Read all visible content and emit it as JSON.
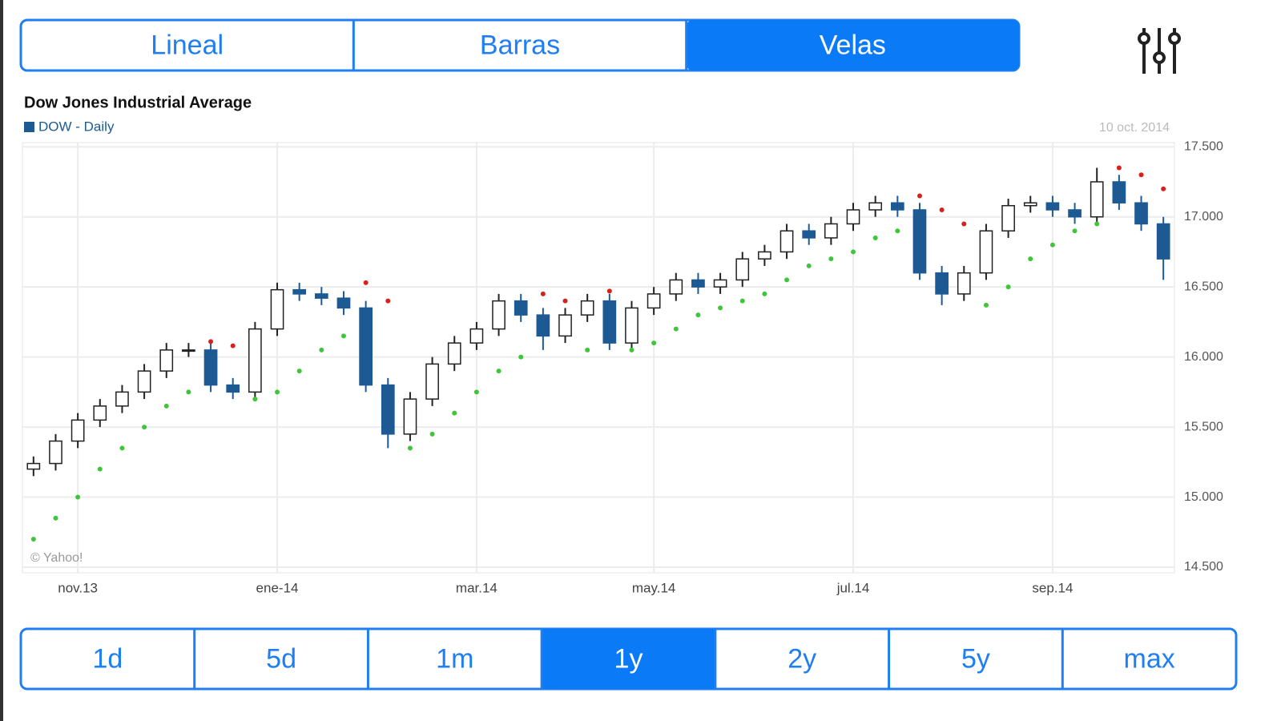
{
  "tabs": {
    "items": [
      "Lineal",
      "Barras",
      "Velas"
    ],
    "active": 2
  },
  "chart_data": {
    "type": "candlestick",
    "title": "Dow Jones Industrial Average",
    "legend": "DOW - Daily",
    "date": "10 oct. 2014",
    "credit": "© Yahoo!",
    "categories": [
      null,
      null,
      "nov.13",
      null,
      null,
      null,
      null,
      null,
      null,
      null,
      null,
      "ene-14",
      null,
      null,
      null,
      null,
      null,
      null,
      null,
      null,
      "mar.14",
      null,
      null,
      null,
      null,
      null,
      null,
      null,
      "may.14",
      null,
      null,
      null,
      null,
      null,
      null,
      null,
      null,
      "jul.14",
      null,
      null,
      null,
      null,
      null,
      null,
      null,
      null,
      "sep.14",
      null,
      null,
      null,
      null,
      null
    ],
    "open": [
      15200,
      15240,
      15400,
      15550,
      15650,
      15750,
      15900,
      16050,
      16050,
      15800,
      15750,
      16200,
      16480,
      16450,
      16420,
      16350,
      15800,
      15450,
      15700,
      15950,
      16100,
      16200,
      16400,
      16300,
      16150,
      16300,
      16400,
      16100,
      16350,
      16450,
      16550,
      16500,
      16550,
      16700,
      16750,
      16900,
      16850,
      16950,
      17050,
      17100,
      17050,
      16600,
      16450,
      16600,
      16900,
      17080,
      17100,
      17050,
      17000,
      17250,
      17100,
      16950
    ],
    "high": [
      15290,
      15450,
      15600,
      15700,
      15800,
      15950,
      16100,
      16100,
      16100,
      15850,
      16250,
      16530,
      16530,
      16500,
      16470,
      16400,
      15850,
      15750,
      16000,
      16150,
      16250,
      16450,
      16450,
      16350,
      16350,
      16450,
      16450,
      16400,
      16500,
      16600,
      16600,
      16600,
      16750,
      16800,
      16950,
      16950,
      17000,
      17100,
      17150,
      17150,
      17100,
      16650,
      16650,
      16950,
      17130,
      17150,
      17150,
      17100,
      17350,
      17300,
      17150,
      17000
    ],
    "low": [
      15150,
      15190,
      15350,
      15500,
      15600,
      15700,
      15850,
      16000,
      15750,
      15700,
      15700,
      16150,
      16400,
      16370,
      16300,
      15750,
      15350,
      15400,
      15650,
      15900,
      16050,
      16150,
      16250,
      16050,
      16100,
      16250,
      16050,
      16050,
      16300,
      16400,
      16450,
      16450,
      16500,
      16650,
      16700,
      16800,
      16800,
      16900,
      17000,
      17000,
      16550,
      16370,
      16400,
      16550,
      16850,
      17030,
      17000,
      16950,
      16950,
      17050,
      16900,
      16550
    ],
    "close": [
      15240,
      15400,
      15550,
      15650,
      15750,
      15900,
      16050,
      16050,
      15800,
      15750,
      16200,
      16480,
      16450,
      16420,
      16350,
      15800,
      15450,
      15700,
      15950,
      16100,
      16200,
      16400,
      16300,
      16150,
      16300,
      16400,
      16100,
      16350,
      16450,
      16550,
      16500,
      16550,
      16700,
      16750,
      16900,
      16850,
      16950,
      17050,
      17100,
      17050,
      16600,
      16450,
      16600,
      16900,
      17080,
      17100,
      17050,
      17000,
      17250,
      17100,
      16950,
      16700
    ],
    "sar": [
      14700,
      14850,
      15000,
      15200,
      15350,
      15500,
      15650,
      15750,
      16110,
      16080,
      15700,
      15750,
      15900,
      16050,
      16150,
      16530,
      16400,
      15350,
      15450,
      15600,
      15750,
      15900,
      16000,
      16450,
      16400,
      16050,
      16470,
      16050,
      16100,
      16200,
      16300,
      16350,
      16400,
      16450,
      16550,
      16650,
      16700,
      16750,
      16850,
      16900,
      17150,
      17050,
      16950,
      16370,
      16500,
      16700,
      16800,
      16900,
      16950,
      17350,
      17300,
      17200
    ],
    "up_color": "#ffffff",
    "down_color": "#1d5a94",
    "sar_above_color": "#d8201c",
    "sar_below_color": "#3fc53a",
    "legend_color": "#1d5a94",
    "ylim": [
      14460,
      17530
    ],
    "yticks": [
      {
        "value": 14500,
        "label": "14.500"
      },
      {
        "value": 15000,
        "label": "15.000"
      },
      {
        "value": 15500,
        "label": "15.500"
      },
      {
        "value": 16000,
        "label": "16.000"
      },
      {
        "value": 16500,
        "label": "16.500"
      },
      {
        "value": 17000,
        "label": "17.000"
      },
      {
        "value": 17500,
        "label": "17.500"
      }
    ],
    "grid": true
  },
  "periods": {
    "items": [
      "1d",
      "5d",
      "1m",
      "1y",
      "2y",
      "5y",
      "max"
    ],
    "active": 3
  }
}
